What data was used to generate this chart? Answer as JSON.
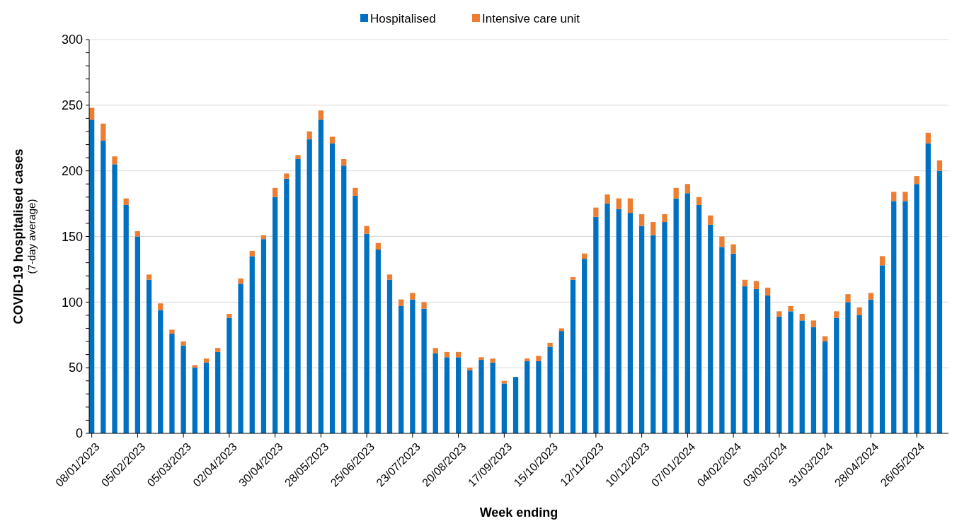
{
  "chart_data": {
    "type": "bar",
    "stacked": true,
    "xlabel": "Week ending",
    "ylabel": "COVID-19 hospitalised cases\n(7-day average)",
    "categories": [
      "08/01/2023",
      null,
      null,
      null,
      "05/02/2023",
      null,
      null,
      null,
      "05/03/2023",
      null,
      null,
      null,
      "02/04/2023",
      null,
      null,
      null,
      "30/04/2023",
      null,
      null,
      null,
      "28/05/2023",
      null,
      null,
      null,
      "25/06/2023",
      null,
      null,
      null,
      "23/07/2023",
      null,
      null,
      null,
      "20/08/2023",
      null,
      null,
      null,
      "17/09/2023",
      null,
      null,
      null,
      "15/10/2023",
      null,
      null,
      null,
      "12/11/2023",
      null,
      null,
      null,
      "10/12/2023",
      null,
      null,
      null,
      "07/01/2024",
      null,
      null,
      null,
      "04/02/2024",
      null,
      null,
      null,
      "03/03/2024",
      null,
      null,
      null,
      "31/03/2024",
      null,
      null,
      null,
      "28/04/2024",
      null,
      null,
      null,
      "26/05/2024",
      null,
      null
    ],
    "series": [
      {
        "name": "Hospitalised",
        "color": "#0070c0",
        "values": [
          239,
          223,
          205,
          174,
          150,
          117,
          94,
          76,
          67,
          50,
          54,
          62,
          88,
          114,
          135,
          148,
          180,
          194,
          209,
          224,
          239,
          221,
          204,
          181,
          152,
          140,
          117,
          97,
          102,
          95,
          61,
          58,
          58,
          48,
          56,
          54,
          38,
          43,
          55,
          55,
          66,
          78,
          117,
          133,
          165,
          175,
          171,
          168,
          158,
          151,
          161,
          179,
          183,
          174,
          159,
          142,
          137,
          112,
          110,
          105,
          89,
          93,
          86,
          81,
          70,
          88,
          100,
          90,
          102,
          128,
          177,
          177,
          190,
          221,
          200
        ]
      },
      {
        "name": "Intensive care unit",
        "color": "#ed7d31",
        "values": [
          9,
          13,
          6,
          5,
          4,
          4,
          5,
          3,
          3,
          2,
          3,
          3,
          3,
          4,
          4,
          3,
          7,
          4,
          3,
          6,
          7,
          5,
          5,
          6,
          6,
          5,
          4,
          5,
          5,
          5,
          4,
          4,
          4,
          2,
          2,
          3,
          2,
          0,
          2,
          4,
          3,
          2,
          2,
          4,
          7,
          7,
          8,
          11,
          9,
          10,
          6,
          8,
          7,
          6,
          7,
          8,
          7,
          5,
          6,
          6,
          4,
          4,
          5,
          5,
          4,
          5,
          6,
          6,
          5,
          7,
          7,
          7,
          6,
          8,
          8
        ]
      }
    ],
    "ylim": [
      0,
      300
    ],
    "yticks": [
      0,
      {
        "value": 10,
        "label": null
      },
      {
        "value": 20,
        "label": null
      },
      {
        "value": 30,
        "label": null
      },
      {
        "value": 40,
        "label": null
      },
      50,
      {
        "value": 60,
        "label": null
      },
      {
        "value": 70,
        "label": null
      },
      {
        "value": 80,
        "label": null
      },
      {
        "value": 90,
        "label": null
      },
      100,
      {
        "value": 110,
        "label": null
      },
      {
        "value": 120,
        "label": null
      },
      {
        "value": 130,
        "label": null
      },
      {
        "value": 140,
        "label": null
      },
      150,
      {
        "value": 160,
        "label": null
      },
      {
        "value": 170,
        "label": null
      },
      {
        "value": 180,
        "label": null
      },
      {
        "value": 190,
        "label": null
      },
      200,
      {
        "value": 210,
        "label": null
      },
      {
        "value": 220,
        "label": null
      },
      {
        "value": 230,
        "label": null
      },
      {
        "value": 240,
        "label": null
      },
      250,
      {
        "value": 260,
        "label": null
      },
      {
        "value": 270,
        "label": null
      },
      {
        "value": 280,
        "label": null
      },
      {
        "value": 290,
        "label": null
      },
      300
    ],
    "grid": "y",
    "legend": "top"
  }
}
